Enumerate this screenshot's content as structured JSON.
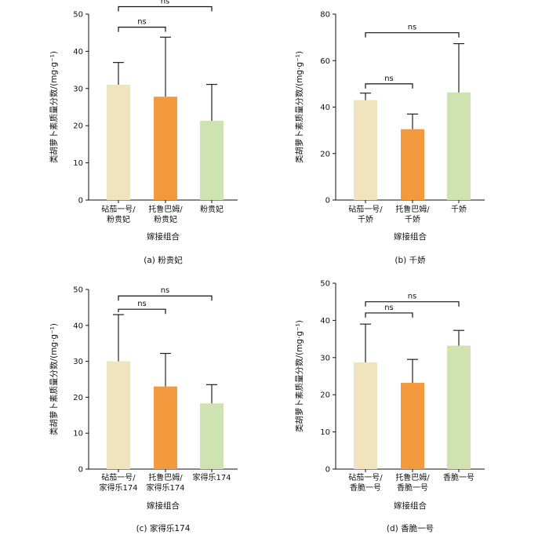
{
  "colors": {
    "bar1": "#EFE4BD",
    "bar2": "#F39A3E",
    "bar3": "#CFE3B0",
    "axis": "#111111"
  },
  "chart_data": [
    {
      "type": "bar",
      "caption": "(a)  粉贵妃",
      "categories": [
        [
          "砧茄一号/",
          "粉贵妃"
        ],
        [
          "托鲁巴姆/",
          "粉贵妃"
        ],
        [
          "粉贵妃"
        ]
      ],
      "values": [
        31,
        27.8,
        21.3
      ],
      "errors": [
        6,
        16,
        9.8
      ],
      "xlabel": "嫁接组合",
      "ylabel": "类胡萝卜素质量分数/(mg·g⁻¹)",
      "ylim": [
        0,
        50
      ],
      "yticks": [
        0,
        10,
        20,
        30,
        40,
        50
      ],
      "significance": [
        {
          "from": 0,
          "to": 1,
          "label": "ns",
          "y": 46.5
        },
        {
          "from": 0,
          "to": 2,
          "label": "ns",
          "y": 52
        }
      ]
    },
    {
      "type": "bar",
      "caption": "(b)  千娇",
      "categories": [
        [
          "砧茄一号/",
          "千娇"
        ],
        [
          "托鲁巴姆/",
          "千娇"
        ],
        [
          "千娇"
        ]
      ],
      "values": [
        43,
        30.5,
        46.3
      ],
      "errors": [
        3,
        6.5,
        21
      ],
      "xlabel": "嫁接组合",
      "ylabel": "类胡萝卜素质量分数/(mg·g⁻¹)",
      "ylim": [
        0,
        80
      ],
      "yticks": [
        0,
        20,
        40,
        60,
        80
      ],
      "significance": [
        {
          "from": 0,
          "to": 1,
          "label": "ns",
          "y": 50
        },
        {
          "from": 0,
          "to": 2,
          "label": "ns",
          "y": 72
        }
      ]
    },
    {
      "type": "bar",
      "caption": "(c)  家得乐174",
      "categories": [
        [
          "砧茄一号/",
          "家得乐174"
        ],
        [
          "托鲁巴姆/",
          "家得乐174"
        ],
        [
          "家得乐174"
        ]
      ],
      "values": [
        30,
        23,
        18.3
      ],
      "errors": [
        13,
        9.2,
        5.2
      ],
      "xlabel": "嫁接组合",
      "ylabel": "类胡萝卜素质量分数/(mg·g⁻¹)",
      "ylim": [
        0,
        50
      ],
      "yticks": [
        0,
        10,
        20,
        30,
        40,
        50
      ],
      "significance": [
        {
          "from": 0,
          "to": 1,
          "label": "ns",
          "y": 44.5
        },
        {
          "from": 0,
          "to": 2,
          "label": "ns",
          "y": 48.2
        }
      ]
    },
    {
      "type": "bar",
      "caption": "(d)  香脆一号",
      "categories": [
        [
          "砧茄一号/",
          "香脆一号"
        ],
        [
          "托鲁巴姆/",
          "香脆一号"
        ],
        [
          "香脆一号"
        ]
      ],
      "values": [
        28.7,
        23.2,
        33.2
      ],
      "errors": [
        10.3,
        6.3,
        4.1
      ],
      "xlabel": "嫁接组合",
      "ylabel": "类胡萝卜素质量分数/(mg·g⁻¹)",
      "ylim": [
        0,
        50
      ],
      "yticks": [
        0,
        10,
        20,
        30,
        40,
        50
      ],
      "significance": [
        {
          "from": 0,
          "to": 1,
          "label": "ns",
          "y": 42
        },
        {
          "from": 0,
          "to": 2,
          "label": "ns",
          "y": 45
        }
      ]
    }
  ]
}
